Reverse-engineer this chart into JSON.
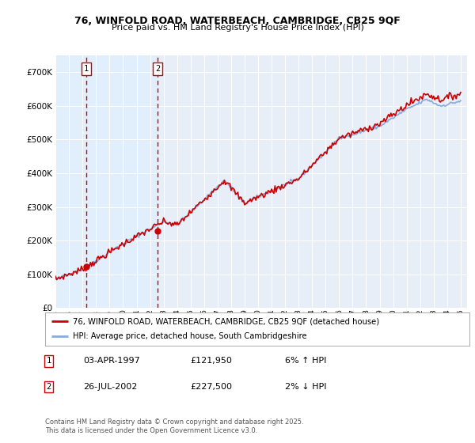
{
  "title1": "76, WINFOLD ROAD, WATERBEACH, CAMBRIDGE, CB25 9QF",
  "title2": "Price paid vs. HM Land Registry's House Price Index (HPI)",
  "legend1": "76, WINFOLD ROAD, WATERBEACH, CAMBRIDGE, CB25 9QF (detached house)",
  "legend2": "HPI: Average price, detached house, South Cambridgeshire",
  "sale1_date": "03-APR-1997",
  "sale1_price": 121950,
  "sale1_label": "6% ↑ HPI",
  "sale2_date": "26-JUL-2002",
  "sale2_price": 227500,
  "sale2_label": "2% ↓ HPI",
  "footnote1": "Contains HM Land Registry data © Crown copyright and database right 2025.",
  "footnote2": "This data is licensed under the Open Government Licence v3.0.",
  "ylim": [
    0,
    750000
  ],
  "xlim_min": 1995,
  "xlim_max": 2025.5,
  "sale1_year": 1997.25,
  "sale2_year": 2002.57,
  "color_red": "#cc0000",
  "color_blue": "#88aadd",
  "color_shade": "#ddeeff",
  "background": "#e8eef8",
  "grid_color": "#ffffff"
}
